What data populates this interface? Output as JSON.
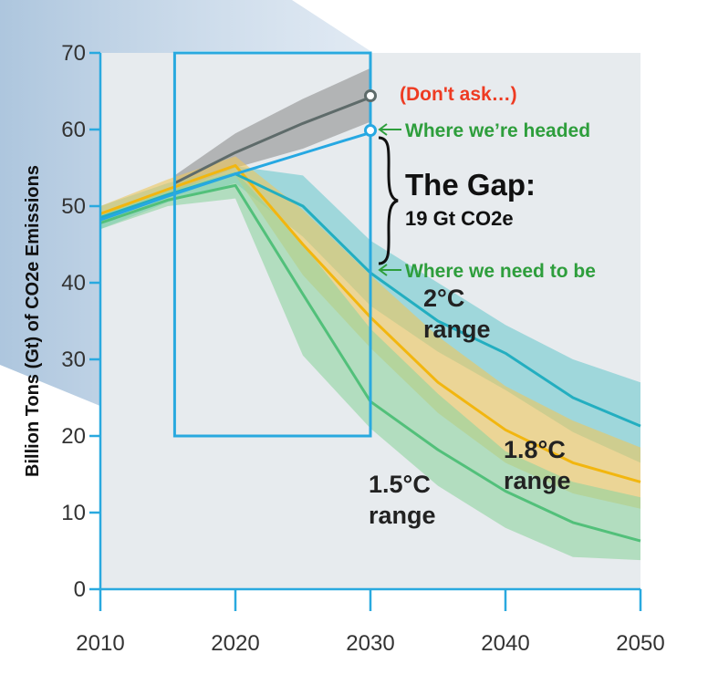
{
  "chart_data": {
    "type": "line",
    "ylabel": "Billion Tons (Gt) of CO2e Emissions",
    "xlim": [
      2010,
      2050
    ],
    "ylim": [
      0,
      70
    ],
    "x_ticks": [
      "2010",
      "2020",
      "2030",
      "2040",
      "2050"
    ],
    "y_ticks": [
      "0",
      "10",
      "20",
      "30",
      "40",
      "50",
      "60",
      "70"
    ],
    "grid": false,
    "series": [
      {
        "key": "dont_ask",
        "color": "#5e6b6a",
        "band_color": "#8f8f8f",
        "x": [
          2015.5,
          2020,
          2025,
          2030
        ],
        "y": [
          53,
          57,
          60.8,
          64.2
        ],
        "band": {
          "x": [
            2015.5,
            2020,
            2025,
            2030
          ],
          "lo": [
            52,
            55,
            57.5,
            61
          ],
          "hi": [
            54,
            59.5,
            64,
            68
          ]
        }
      },
      {
        "key": "headed",
        "color": "#26a8e2",
        "band_color": null,
        "x": [
          2010,
          2015,
          2020,
          2025,
          2030
        ],
        "y": [
          48.2,
          51.3,
          54.2,
          56.9,
          59.6
        ],
        "band": null
      },
      {
        "key": "two_c",
        "color": "#23aec0",
        "band_color": "#6fc9cf",
        "x": [
          2010,
          2015,
          2020,
          2025,
          2030,
          2035,
          2040,
          2045,
          2050
        ],
        "y": [
          48.5,
          51.5,
          54.2,
          50,
          41.3,
          35,
          30.8,
          25,
          21.3
        ],
        "band": {
          "x": [
            2010,
            2015,
            2020,
            2025,
            2030,
            2035,
            2040,
            2045,
            2050
          ],
          "lo": [
            47,
            50.5,
            53,
            46,
            37,
            31,
            26,
            20.5,
            16.5
          ],
          "hi": [
            50,
            53,
            55.2,
            54,
            45.5,
            40,
            34.5,
            30,
            27
          ]
        }
      },
      {
        "key": "one_eight_c",
        "color": "#f2b60f",
        "band_color": "#efc65c",
        "x": [
          2010,
          2015,
          2020,
          2025,
          2030,
          2035,
          2040,
          2045,
          2050
        ],
        "y": [
          49,
          52.2,
          55.3,
          45,
          35.5,
          27,
          20.8,
          16.5,
          14
        ],
        "band": {
          "x": [
            2010,
            2015,
            2020,
            2025,
            2030,
            2035,
            2040,
            2045,
            2050
          ],
          "lo": [
            48,
            51.2,
            54,
            41,
            31.5,
            23,
            16.5,
            12.5,
            10.5
          ],
          "hi": [
            50,
            53.5,
            56.5,
            49.5,
            41,
            33,
            26.5,
            22,
            18.5
          ]
        }
      },
      {
        "key": "one_five_c",
        "color": "#52c07a",
        "band_color": "#8fd4a0",
        "x": [
          2010,
          2015,
          2020,
          2025,
          2030,
          2035,
          2040,
          2045,
          2050
        ],
        "y": [
          47.8,
          50.8,
          52.7,
          38.5,
          24.5,
          18.2,
          12.8,
          8.7,
          6.3
        ],
        "band": {
          "x": [
            2010,
            2015,
            2020,
            2025,
            2030,
            2035,
            2040,
            2045,
            2050
          ],
          "lo": [
            47,
            50,
            51,
            30.5,
            21,
            13.5,
            8,
            4.2,
            3.8
          ],
          "hi": [
            49,
            52,
            54.5,
            45,
            34,
            25.5,
            18,
            14,
            12
          ]
        }
      }
    ],
    "zoom_box": {
      "x": [
        2015.5,
        2030
      ],
      "y": [
        20,
        70
      ]
    },
    "annotations": {
      "dont_ask": "(Don't ask…)",
      "headed": "Where we’re headed",
      "need": "Where we need to be",
      "gap_title": "The Gap:",
      "gap_sub": "19 Gt CO2e",
      "range_2c": [
        "2°C",
        "range"
      ],
      "range_18c": [
        "1.8°C",
        "range"
      ],
      "range_15c": [
        "1.5°C",
        "range"
      ]
    }
  },
  "colors": {
    "plot_bg": "#e7ebee",
    "axis": "#29a9df",
    "zoom_box": "#29a9df",
    "annotation_green": "#2e9e3c",
    "annotation_red": "#ee3b22"
  }
}
